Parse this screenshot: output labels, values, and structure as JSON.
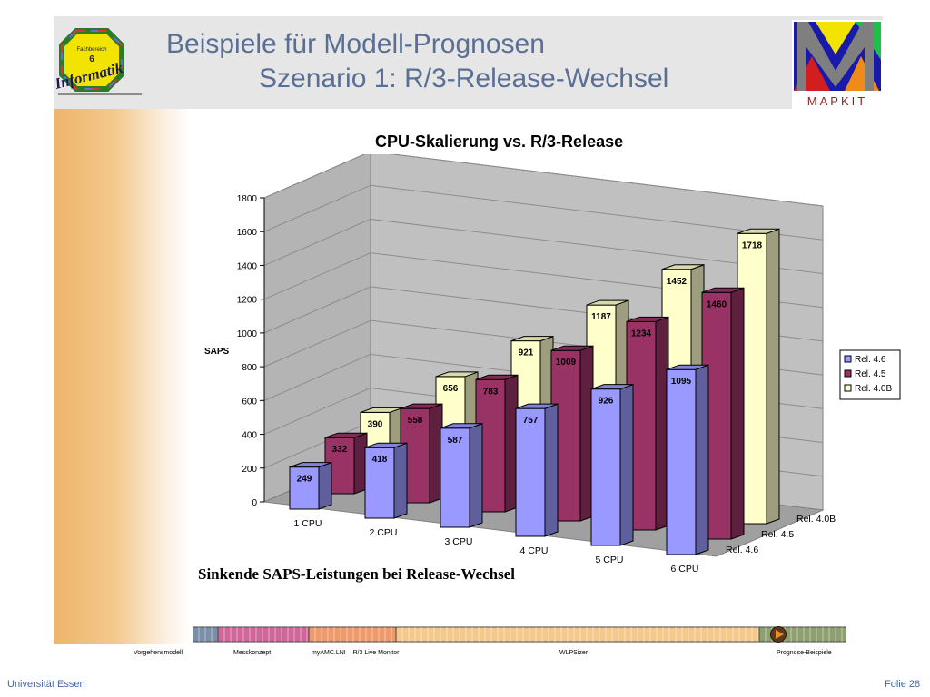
{
  "header": {
    "title_line1": "Beispiele für Modell-Prognosen",
    "title_line2": "Szenario 1: R/3-Release-Wechsel",
    "logo_left": {
      "line1": "Fachbereich",
      "line2": "6",
      "text": "Informatik"
    },
    "logo_right": {
      "text": "MAPKIT"
    }
  },
  "chart_data": {
    "type": "bar",
    "title": "CPU-Skalierung vs. R/3-Release",
    "ylabel": "SAPS",
    "xlabel": "",
    "ylim": [
      0,
      1800
    ],
    "yticks": [
      "0",
      "200",
      "400",
      "600",
      "800",
      "1000",
      "1200",
      "1400",
      "1600",
      "1800"
    ],
    "categories": [
      "1 CPU",
      "2 CPU",
      "3 CPU",
      "4 CPU",
      "5 CPU",
      "6 CPU"
    ],
    "series": [
      {
        "name": "Rel. 4.6",
        "values": [
          249,
          418,
          587,
          757,
          926,
          1095
        ],
        "color": "#9999ff"
      },
      {
        "name": "Rel. 4.5",
        "values": [
          332,
          558,
          783,
          1009,
          1234,
          1460
        ],
        "color": "#993366"
      },
      {
        "name": "Rel. 4.0B",
        "values": [
          390,
          656,
          921,
          1187,
          1452,
          1718
        ],
        "color": "#ffffcc"
      }
    ],
    "legend_position": "right",
    "grid": true,
    "style": "3d-clustered-columns"
  },
  "caption": "Sinkende SAPS-Leistungen bei Release-Wechsel",
  "navigation": {
    "items": [
      "Vorgehensmodell",
      "Messkonzept",
      "myAMC.LNI – R/3 Live Monitor",
      "WLPSizer",
      "Prognose-Beispiele"
    ],
    "colors": [
      "#7a8fa8",
      "#d0679a",
      "#ee9a6a",
      "#f5c98c",
      "#8fa070"
    ]
  },
  "footer": {
    "left": "Universität Essen",
    "right": "Folie 28"
  }
}
